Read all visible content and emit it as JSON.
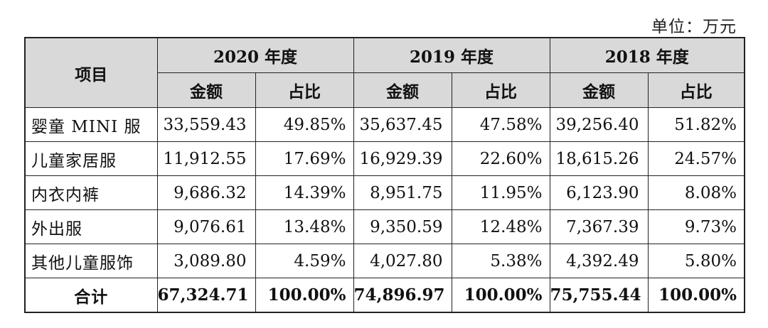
{
  "unit_label": "单位：万元",
  "header": {
    "item": "项目",
    "years": [
      "2020 年度",
      "2019 年度",
      "2018 年度"
    ],
    "amount": "金额",
    "ratio": "占比"
  },
  "rows": [
    {
      "item": "婴童 MINI 服",
      "v2020": "33,559.43",
      "p2020": "49.85%",
      "v2019": "35,637.45",
      "p2019": "47.58%",
      "v2018": "39,256.40",
      "p2018": "51.82%"
    },
    {
      "item": "儿童家居服",
      "v2020": "11,912.55",
      "p2020": "17.69%",
      "v2019": "16,929.39",
      "p2019": "22.60%",
      "v2018": "18,615.26",
      "p2018": "24.57%"
    },
    {
      "item": "内衣内裤",
      "v2020": "9,686.32",
      "p2020": "14.39%",
      "v2019": "8,951.75",
      "p2019": "11.95%",
      "v2018": "6,123.90",
      "p2018": "8.08%"
    },
    {
      "item": "外出服",
      "v2020": "9,076.61",
      "p2020": "13.48%",
      "v2019": "9,350.59",
      "p2019": "12.48%",
      "v2018": "7,367.39",
      "p2018": "9.73%"
    },
    {
      "item": "其他儿童服饰",
      "v2020": "3,089.80",
      "p2020": "4.59%",
      "v2019": "4,027.80",
      "p2019": "5.38%",
      "v2018": "4,392.49",
      "p2018": "5.80%"
    }
  ],
  "total": {
    "item": "合计",
    "v2020": "67,324.71",
    "p2020": "100.00%",
    "v2019": "74,896.97",
    "p2019": "100.00%",
    "v2018": "75,755.44",
    "p2018": "100.00%"
  }
}
